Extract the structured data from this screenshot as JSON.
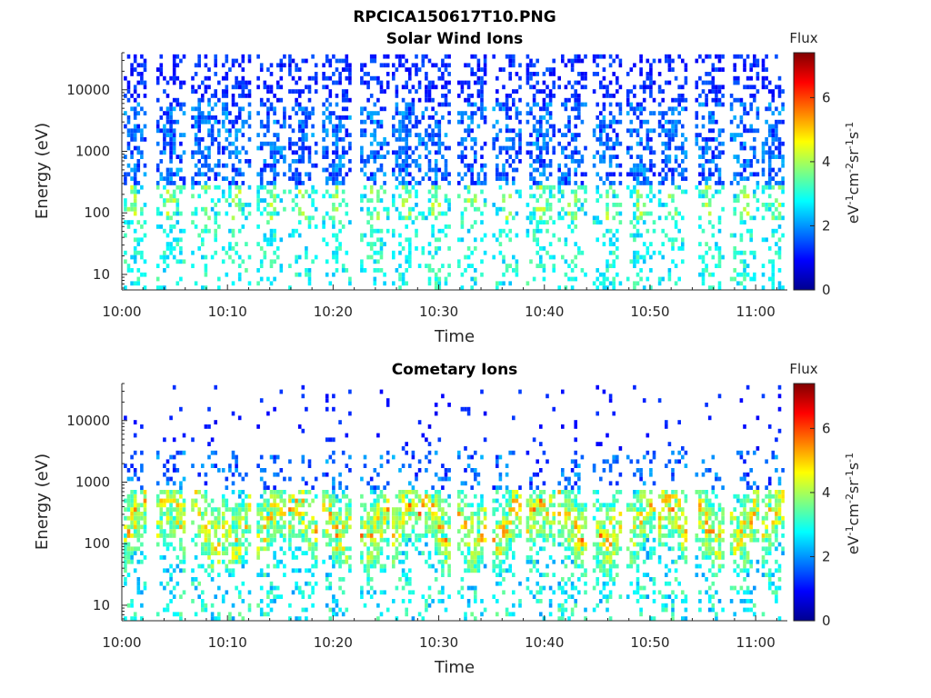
{
  "figure_title": "RPCICA150617T10.PNG",
  "chart_data": [
    {
      "type": "heatmap",
      "title": "Solar Wind Ions",
      "xlabel": "Time",
      "ylabel": "Energy (eV)",
      "x_ticks": [
        "10:00",
        "10:10",
        "10:20",
        "10:30",
        "10:40",
        "10:50",
        "11:00"
      ],
      "y_ticks": [
        "10",
        "100",
        "1000",
        "10000"
      ],
      "x_range_minutes": [
        0,
        63
      ],
      "y_range": [
        5.6,
        40000
      ],
      "y_scale": "log",
      "colorbar": {
        "title": "Flux",
        "label": "eV^-1 cm^-2 sr^-1 s^-1",
        "ticks": [
          "0",
          "2",
          "4",
          "6"
        ],
        "range": [
          0,
          7.4
        ],
        "colormap": "jet"
      },
      "sweep_centers_minutes": [
        0.8,
        4.5,
        7.8,
        10.7,
        14.0,
        17.0,
        20.2,
        23.8,
        26.8,
        29.6,
        33.0,
        36.3,
        39.5,
        42.5,
        45.8,
        49.0,
        52.0,
        55.5,
        58.8,
        61.8
      ],
      "peak_flux": 4.7,
      "grid": false,
      "legend": "colorbar right"
    },
    {
      "type": "heatmap",
      "title": "Cometary Ions",
      "xlabel": "Time",
      "ylabel": "Energy (eV)",
      "x_ticks": [
        "10:00",
        "10:10",
        "10:20",
        "10:30",
        "10:40",
        "10:50",
        "11:00"
      ],
      "y_ticks": [
        "10",
        "100",
        "1000",
        "10000"
      ],
      "x_range_minutes": [
        0,
        63
      ],
      "y_range": [
        5.6,
        40000
      ],
      "y_scale": "log",
      "colorbar": {
        "title": "Flux",
        "label": "eV^-1 cm^-2 sr^-1 s^-1",
        "ticks": [
          "0",
          "2",
          "4",
          "6"
        ],
        "range": [
          0,
          7.4
        ],
        "colormap": "jet"
      },
      "sweep_centers_minutes": [
        0.8,
        4.5,
        7.8,
        10.7,
        14.0,
        17.0,
        20.2,
        23.8,
        26.8,
        29.6,
        33.0,
        36.3,
        39.5,
        42.5,
        45.8,
        49.0,
        52.0,
        55.5,
        58.8,
        61.8
      ],
      "peak_flux": 6.7,
      "grid": false,
      "legend": "colorbar right"
    }
  ],
  "colors": {
    "axis": "#262626",
    "jet_low": "#00008f",
    "jet_high": "#800000"
  }
}
